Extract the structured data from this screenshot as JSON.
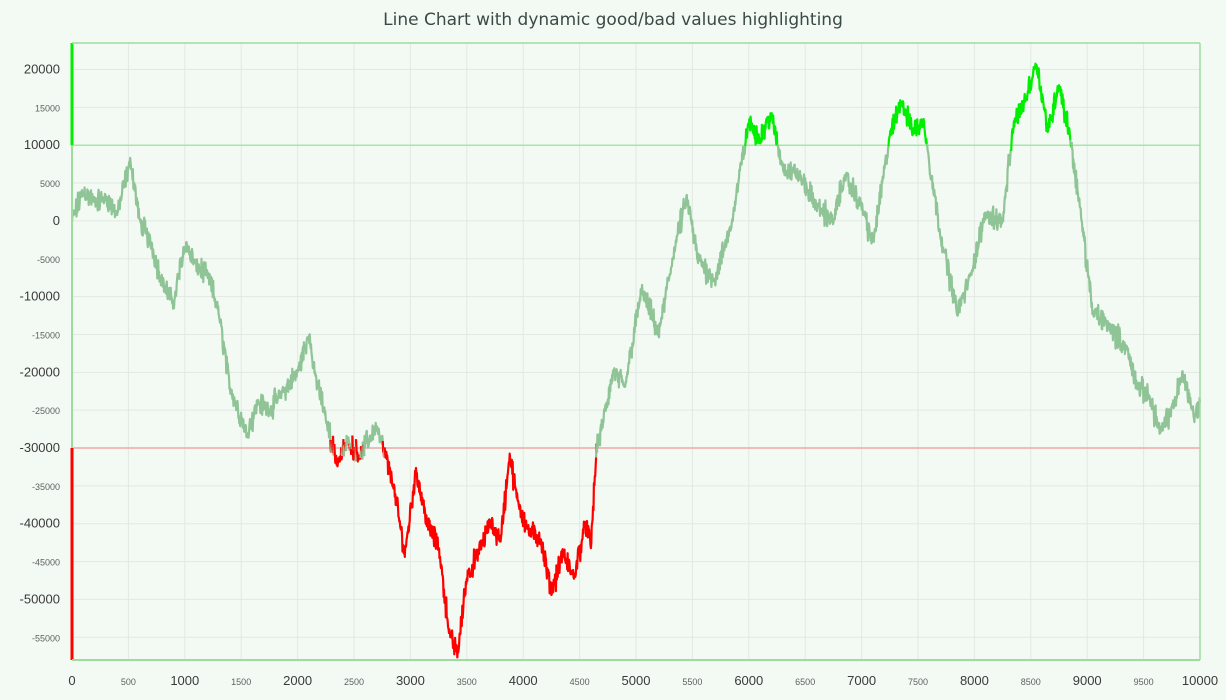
{
  "chart_data": {
    "type": "line",
    "title": "Line Chart with dynamic good/bad values highlighting",
    "xlim": [
      0,
      10000
    ],
    "ylim": [
      -58000,
      23500
    ],
    "x_ticks": [
      0,
      500,
      1000,
      1500,
      2000,
      2500,
      3000,
      3500,
      4000,
      4500,
      5000,
      5500,
      6000,
      6500,
      7000,
      7500,
      8000,
      8500,
      9000,
      9500,
      10000
    ],
    "x_tick_labels": [
      "0",
      "500",
      "1000",
      "1500",
      "2000",
      "2500",
      "3000",
      "3500",
      "4000",
      "4500",
      "5000",
      "5500",
      "6000",
      "6500",
      "7000",
      "7500",
      "8000",
      "8500",
      "9000",
      "9500",
      "10000"
    ],
    "y_ticks": [
      20000,
      15000,
      10000,
      5000,
      0,
      -5000,
      -10000,
      -15000,
      -20000,
      -25000,
      -30000,
      -35000,
      -40000,
      -45000,
      -50000,
      -55000
    ],
    "y_tick_labels": [
      "20000",
      "15000",
      "10000",
      "5000",
      "0",
      "-5000",
      "-10000",
      "-15000",
      "-20000",
      "-25000",
      "-30000",
      "-35000",
      "-40000",
      "-45000",
      "-50000",
      "-55000"
    ],
    "grid": true,
    "thresholds": {
      "good": 10000,
      "bad": -30000
    },
    "colors": {
      "normal": "#8fc496",
      "good": "#00ee00",
      "bad": "#ff0000",
      "good_line": "#a8e6a8",
      "bad_line": "#f0a8a8",
      "grid": "#e2e8e2",
      "axis": "#9edc9e"
    },
    "series": [
      {
        "x": [
          0,
          100,
          200,
          300,
          400,
          520,
          600,
          700,
          800,
          900,
          1000,
          1100,
          1200,
          1300,
          1400,
          1550,
          1650,
          1750,
          1850,
          2000,
          2100,
          2150,
          2250,
          2350,
          2450,
          2550,
          2700,
          2850,
          2950,
          3050,
          3150,
          3250,
          3350,
          3420,
          3500,
          3600,
          3700,
          3800,
          3880,
          3950,
          4050,
          4150,
          4250,
          4350,
          4450,
          4550,
          4600,
          4650,
          4700,
          4800,
          4900,
          5050,
          5200,
          5350,
          5450,
          5550,
          5700,
          5850,
          6000,
          6100,
          6200,
          6300,
          6450,
          6600,
          6750,
          6850,
          7000,
          7100,
          7250,
          7350,
          7450,
          7550,
          7700,
          7850,
          7950,
          8100,
          8250,
          8350,
          8450,
          8550,
          8650,
          8750,
          8850,
          8950,
          9050,
          9200,
          9350,
          9450,
          9550,
          9650,
          9750,
          9850,
          9950,
          10000
        ],
        "y": [
          0,
          4000,
          2500,
          3000,
          1000,
          8000,
          0,
          -3000,
          -8000,
          -11000,
          -3000,
          -6000,
          -7000,
          -12000,
          -22000,
          -28000,
          -24000,
          -25000,
          -23000,
          -20000,
          -15000,
          -20000,
          -26000,
          -32000,
          -29000,
          -31000,
          -27000,
          -35000,
          -44000,
          -33000,
          -40000,
          -43000,
          -55000,
          -57000,
          -47000,
          -44000,
          -40000,
          -42000,
          -31000,
          -37000,
          -41000,
          -42000,
          -49000,
          -44000,
          -47000,
          -40000,
          -43000,
          -30000,
          -27000,
          -20000,
          -22000,
          -9000,
          -15000,
          -3000,
          3000,
          -5000,
          -8000,
          0,
          13000,
          11000,
          14000,
          7000,
          6000,
          2000,
          0,
          6000,
          2000,
          -3000,
          11000,
          16000,
          12000,
          13000,
          -2000,
          -12000,
          -8000,
          1000,
          0,
          13000,
          16000,
          21000,
          12000,
          18000,
          11000,
          0,
          -12000,
          -14000,
          -17000,
          -22000,
          -23000,
          -28000,
          -25000,
          -20000,
          -26000,
          -24000
        ],
        "noise_amplitude": 2200
      }
    ]
  }
}
